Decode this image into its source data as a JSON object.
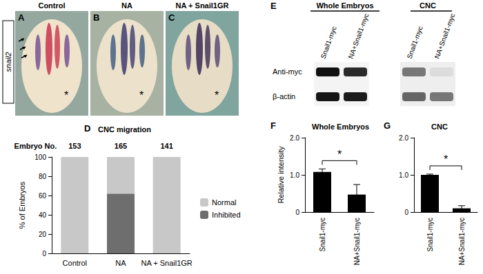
{
  "panels": {
    "images": {
      "row_label": "snail2",
      "items": [
        {
          "letter": "A",
          "title": "Control",
          "annotation": "*"
        },
        {
          "letter": "B",
          "title": "NA",
          "annotation": "*"
        },
        {
          "letter": "C",
          "title": "NA + Snail1GR",
          "annotation": "*"
        }
      ]
    },
    "blot": {
      "letter": "E",
      "groups": [
        "Whole Embryos",
        "CNC"
      ],
      "lanes": [
        "Snail1-myc",
        "NA+Snail1-myc"
      ],
      "rows": [
        "Anti-myc",
        "β-actin"
      ]
    }
  },
  "chart_data": [
    {
      "letter": "D",
      "type": "bar",
      "stacked": true,
      "title": "CNC migration",
      "categories": [
        "Control",
        "NA",
        "NA + Snail1GR"
      ],
      "ylabel": "% of Embryos",
      "ylim": [
        0,
        100
      ],
      "yticks": [
        0,
        20,
        40,
        60,
        80,
        100
      ],
      "series": [
        {
          "name": "Normal",
          "color": "#c8c8c8",
          "values": [
            100,
            38,
            100
          ]
        },
        {
          "name": "Inhibited",
          "color": "#6e6e6e",
          "values": [
            0,
            62,
            0
          ]
        }
      ],
      "legend": "right",
      "counts_label": "Embryo No.",
      "counts": [
        153,
        165,
        141
      ]
    },
    {
      "letter": "F",
      "type": "bar",
      "title": "Whole Embryos",
      "categories": [
        "Snail1-myc",
        "NA+Snail1-myc"
      ],
      "values": [
        1.08,
        0.47
      ],
      "errors": [
        0.08,
        0.27
      ],
      "color": "#000000",
      "ylabel": "Relative intensity",
      "ylim": [
        0,
        2
      ],
      "yticks": [
        0,
        {
          "value": 1,
          "label": "1.0"
        },
        {
          "value": 2,
          "label": "2.0"
        }
      ],
      "annotations": [
        "*"
      ]
    },
    {
      "letter": "G",
      "type": "bar",
      "title": "CNC",
      "categories": [
        "Snail1-myc",
        "NA+Snail1-myc"
      ],
      "values": [
        1.0,
        0.1
      ],
      "errors": [
        0.02,
        0.07
      ],
      "color": "#000000",
      "ylim": [
        0,
        2
      ],
      "yticks": [
        0,
        {
          "value": 1,
          "label": "1.0"
        },
        {
          "value": 2,
          "label": "2.0"
        }
      ],
      "annotations": [
        "*"
      ]
    }
  ]
}
